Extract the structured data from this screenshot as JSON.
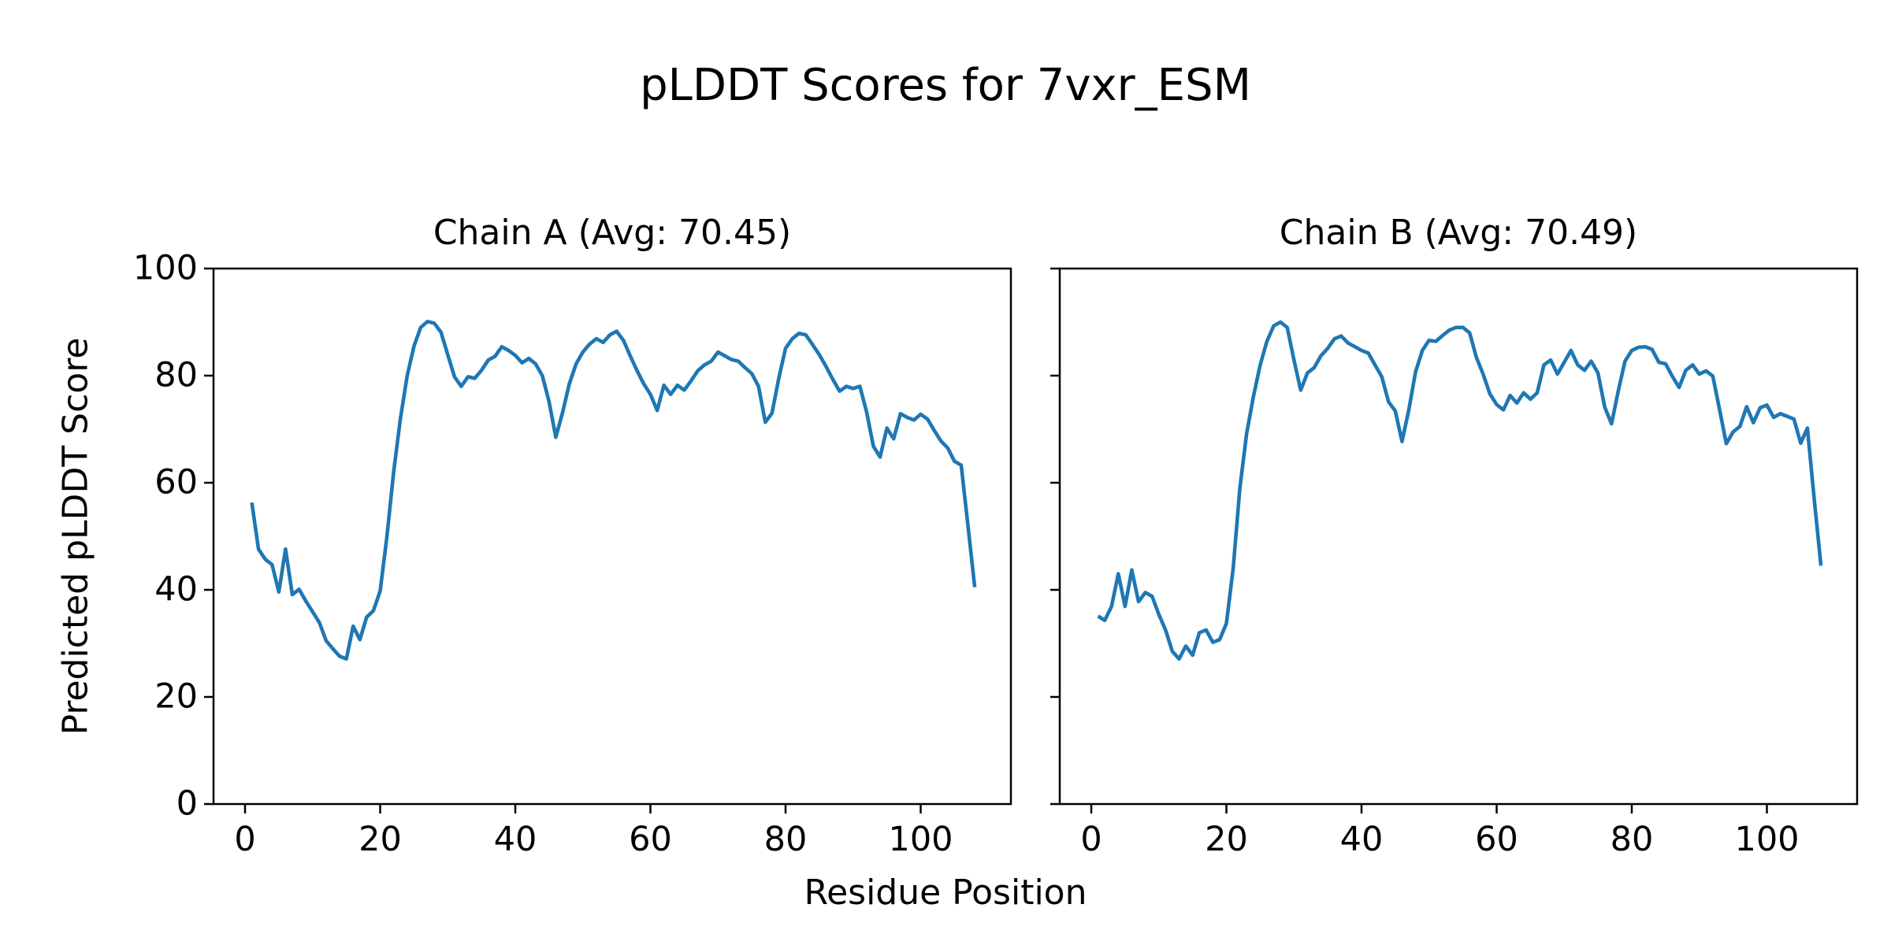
{
  "figure": {
    "suptitle": "pLDDT Scores for 7vxr_ESM",
    "xlabel": "Residue Position",
    "ylabel": "Predicted pLDDT Score",
    "background_color": "#ffffff",
    "text_color": "#000000",
    "line_color": "#1f77b4"
  },
  "chart_data": [
    {
      "type": "line",
      "title": "Chain A (Avg: 70.45)",
      "chain": "A",
      "avg_plddt": "70.45",
      "xlabel": "Residue Position",
      "ylabel": "Predicted pLDDT Score",
      "xlim": [
        -4.7,
        113.3
      ],
      "ylim": [
        0,
        100
      ],
      "grid": false,
      "legend": "none",
      "xticks": [
        "0",
        "20",
        "40",
        "60",
        "80",
        "100"
      ],
      "xtick_values": [
        0,
        20,
        40,
        60,
        80,
        100
      ],
      "yticks": [
        "0",
        "20",
        "40",
        "60",
        "80",
        "100"
      ],
      "ytick_values": [
        0,
        20,
        40,
        60,
        80,
        100
      ],
      "x_start": 1,
      "y": [
        56.3,
        47.6,
        45.7,
        44.7,
        39.6,
        47.6,
        39.1,
        40.1,
        37.9,
        35.9,
        33.9,
        30.5,
        29.0,
        27.6,
        27.1,
        33.2,
        30.7,
        34.9,
        36.1,
        39.8,
        50.0,
        62.0,
        72.0,
        80.0,
        85.5,
        89.0,
        90.1,
        89.8,
        88.1,
        83.9,
        79.8,
        78.0,
        79.8,
        79.5,
        81.0,
        82.9,
        83.6,
        85.4,
        84.7,
        83.8,
        82.4,
        83.2,
        82.2,
        80.0,
        75.1,
        68.5,
        73.1,
        78.5,
        82.2,
        84.4,
        85.9,
        86.9,
        86.2,
        87.6,
        88.3,
        86.6,
        83.7,
        81.0,
        78.5,
        76.5,
        73.5,
        78.2,
        76.5,
        78.2,
        77.3,
        79.0,
        80.9,
        82.0,
        82.7,
        84.4,
        83.7,
        83.0,
        82.7,
        81.5,
        80.4,
        78.0,
        71.3,
        73.0,
        79.5,
        85.1,
        86.9,
        87.9,
        87.6,
        85.8,
        83.9,
        81.7,
        79.3,
        77.1,
        78.0,
        77.6,
        78.0,
        73.2,
        66.8,
        64.8,
        70.2,
        68.2,
        72.9,
        72.2,
        71.7,
        72.8,
        71.9,
        69.8,
        67.8,
        66.5,
        64.0,
        63.3,
        52.0,
        40.5
      ]
    },
    {
      "type": "line",
      "title": "Chain B (Avg: 70.49)",
      "chain": "B",
      "avg_plddt": "70.49",
      "xlabel": "Residue Position",
      "ylabel": "Predicted pLDDT Score",
      "xlim": [
        -4.7,
        113.3
      ],
      "ylim": [
        0,
        100
      ],
      "grid": false,
      "legend": "none",
      "xticks": [
        "0",
        "20",
        "40",
        "60",
        "80",
        "100"
      ],
      "xtick_values": [
        0,
        20,
        40,
        60,
        80,
        100
      ],
      "yticks": [],
      "ytick_values": [
        0,
        20,
        40,
        60,
        80,
        100
      ],
      "x_start": 1,
      "y": [
        35.1,
        34.3,
        36.9,
        43.0,
        36.9,
        43.7,
        37.8,
        39.5,
        38.8,
        35.4,
        32.5,
        28.5,
        27.1,
        29.5,
        27.8,
        32.0,
        32.5,
        30.2,
        30.7,
        33.7,
        44.0,
        59.0,
        69.2,
        76.1,
        82.0,
        86.4,
        89.3,
        90.0,
        89.0,
        82.9,
        77.3,
        80.5,
        81.5,
        83.7,
        85.1,
        86.9,
        87.4,
        86.1,
        85.4,
        84.7,
        84.2,
        82.0,
        79.8,
        75.1,
        73.4,
        67.7,
        73.6,
        80.7,
        84.7,
        86.6,
        86.4,
        87.5,
        88.5,
        89.0,
        89.0,
        88.0,
        83.4,
        80.3,
        76.6,
        74.6,
        73.6,
        76.3,
        74.9,
        76.8,
        75.6,
        76.8,
        82.0,
        82.9,
        80.3,
        82.5,
        84.7,
        82.0,
        81.0,
        82.7,
        80.5,
        74.1,
        71.0,
        77.1,
        82.7,
        84.7,
        85.3,
        85.4,
        84.9,
        82.5,
        82.2,
        79.9,
        77.8,
        81.0,
        82.0,
        80.3,
        80.9,
        79.9,
        73.6,
        67.3,
        69.5,
        70.5,
        74.2,
        71.2,
        74.0,
        74.5,
        72.2,
        72.9,
        72.4,
        71.9,
        67.4,
        70.2,
        57.0,
        44.5
      ]
    }
  ]
}
